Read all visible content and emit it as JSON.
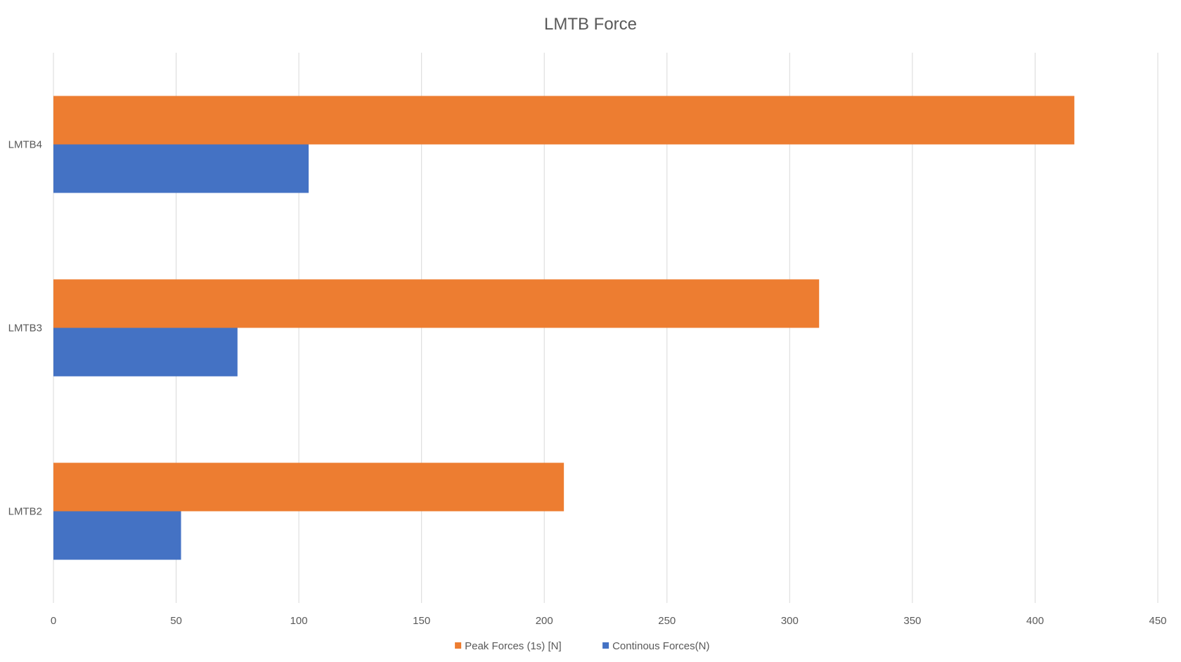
{
  "chart_data": {
    "type": "bar",
    "orientation": "horizontal",
    "title": "LMTB Force",
    "categories": [
      "LMTB4",
      "LMTB3",
      "LMTB2"
    ],
    "series": [
      {
        "name": "Peak Forces (1s) [N]",
        "values": [
          416,
          312,
          208
        ]
      },
      {
        "name": "Continous Forces(N)",
        "values": [
          104,
          75,
          52
        ]
      }
    ],
    "xlim": [
      0,
      450
    ],
    "xticks": [
      "0",
      "50",
      "100",
      "150",
      "200",
      "250",
      "300",
      "350",
      "400",
      "450"
    ],
    "grid": true,
    "legend": "bottom"
  },
  "colors": {
    "peak": "#ED7D31",
    "continuous": "#4472C4",
    "grid": "#D9D9D9",
    "text": "#595959"
  }
}
